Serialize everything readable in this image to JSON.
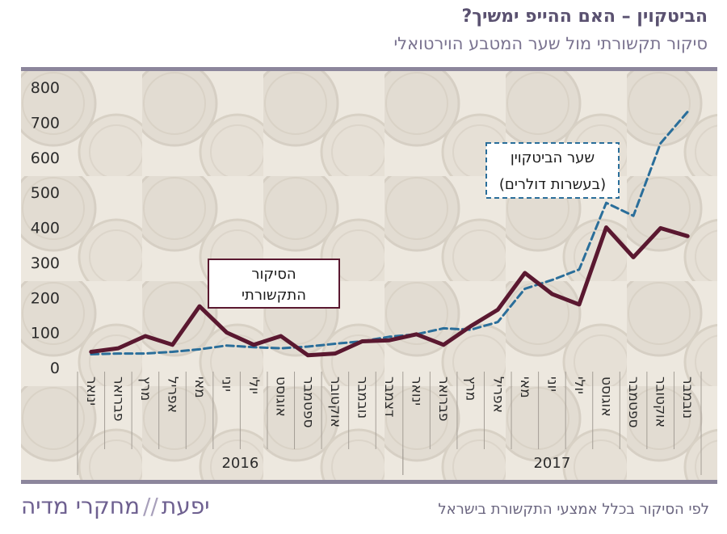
{
  "header": {
    "title": "הביטקוין – האם ההייפ ימשיך?",
    "subtitle": "סיקור תקשורתי מול שער המטבע הוירטואלי"
  },
  "footer": {
    "note": "לפי הסיקור בכלל אמצעי התקשורת בישראל",
    "brand_left": "יפעת",
    "brand_sep": "//",
    "brand_right": "מחקרי מדיה"
  },
  "colors": {
    "coverage": "#5a1830",
    "price": "#2a6e9a",
    "background": "#efebe4"
  },
  "chart_data": {
    "type": "line",
    "ylim": [
      0,
      800
    ],
    "yticks": [
      0,
      100,
      200,
      300,
      400,
      500,
      600,
      700,
      800
    ],
    "categories": [
      "ינואר",
      "פברואר",
      "מרץ",
      "אפריל",
      "מאי",
      "יוני",
      "יולי",
      "אוגוסט",
      "ספטמבר",
      "אוקטובר",
      "נובמבר",
      "דצמבר",
      "ינואר",
      "פברואר",
      "מרץ",
      "אפריל",
      "מאי",
      "יוני",
      "יולי",
      "אוגוסט",
      "ספטמבר",
      "אוקטובר",
      "נובמבר"
    ],
    "year_groups": [
      {
        "label": "2016",
        "start": 0,
        "end": 11
      },
      {
        "label": "2017",
        "start": 12,
        "end": 22
      }
    ],
    "series": [
      {
        "key": "coverage",
        "style": "solid",
        "label_lines": [
          "הסיקור",
          "התקשורתי"
        ],
        "values": [
          45,
          55,
          90,
          65,
          175,
          100,
          65,
          90,
          35,
          40,
          75,
          78,
          95,
          65,
          118,
          165,
          270,
          210,
          180,
          400,
          315,
          398,
          375
        ]
      },
      {
        "key": "price",
        "style": "dashed",
        "label_lines": [
          "שער הביטקוין",
          "(בעשרות דולרים)"
        ],
        "values": [
          38,
          40,
          40,
          45,
          52,
          63,
          58,
          55,
          60,
          68,
          75,
          88,
          95,
          112,
          108,
          130,
          225,
          250,
          280,
          470,
          433,
          640,
          730
        ]
      }
    ]
  }
}
